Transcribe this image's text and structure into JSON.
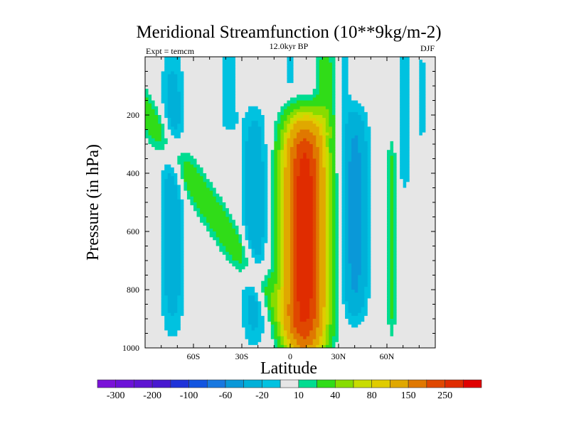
{
  "chart_data": {
    "type": "heatmap",
    "subtype": "filled-contour",
    "title": "Meridional Streamfunction (10**9kg/m-2)",
    "subtitle_left": "Expt = temcm",
    "subtitle_center": "12.0kyr BP",
    "subtitle_right": "DJF",
    "xlabel": "Latitude",
    "ylabel": "Pressure (in hPa)",
    "xlim": [
      -90,
      90
    ],
    "ylim": [
      0,
      1000
    ],
    "y_inverted": true,
    "x_ticks": [
      {
        "value": -60,
        "label": "60S"
      },
      {
        "value": -30,
        "label": "30S"
      },
      {
        "value": 0,
        "label": "0"
      },
      {
        "value": 30,
        "label": "30N"
      },
      {
        "value": 60,
        "label": "60N"
      }
    ],
    "y_ticks": [
      {
        "value": 200,
        "label": "200"
      },
      {
        "value": 400,
        "label": "400"
      },
      {
        "value": 600,
        "label": "600"
      },
      {
        "value": 800,
        "label": "800"
      },
      {
        "value": 1000,
        "label": "1000"
      }
    ],
    "levels": [
      -300,
      -250,
      -200,
      -150,
      -100,
      -80,
      -60,
      -40,
      -20,
      -10,
      10,
      20,
      40,
      60,
      80,
      100,
      150,
      200,
      250,
      300
    ],
    "colors": [
      "#7a12d8",
      "#6c12d8",
      "#5e14d2",
      "#4818d0",
      "#1e32d8",
      "#1254e0",
      "#1878e0",
      "#0a98d8",
      "#00b0d8",
      "#00c2e0",
      "#e6e6e6",
      "#00dc90",
      "#30dc18",
      "#88dc00",
      "#c8dc00",
      "#e0cc00",
      "#e0a800",
      "#e07800",
      "#e04800",
      "#e02c00",
      "#e00000"
    ],
    "colorbar_labels": [
      {
        "level_index": 1,
        "label": "-300"
      },
      {
        "level_index": 3,
        "label": "-200"
      },
      {
        "level_index": 5,
        "label": "-100"
      },
      {
        "level_index": 7,
        "label": "-60"
      },
      {
        "level_index": 9,
        "label": "-20"
      },
      {
        "level_index": 11,
        "label": "10"
      },
      {
        "level_index": 13,
        "label": "40"
      },
      {
        "level_index": 15,
        "label": "80"
      },
      {
        "level_index": 17,
        "label": "150"
      },
      {
        "level_index": 19,
        "label": "250"
      }
    ],
    "features": [
      {
        "name": "SH high-latitude negative cell",
        "lat": -73,
        "lat_width": 7,
        "p_center": 470,
        "p_half": 480,
        "amplitude": -32
      },
      {
        "name": "SH mid-latitude positive cell",
        "lat": -52,
        "lat_width": 10,
        "p_center": 500,
        "p_half": 480,
        "amplitude": 34,
        "tilt": 0.012
      },
      {
        "name": "SH subtropical negative cell",
        "lat": -22,
        "lat_width": 8,
        "p_center": 580,
        "p_half": 400,
        "amplitude": -34
      },
      {
        "name": "SH upper negative branch",
        "lat": -38,
        "lat_width": 6,
        "p_center": 120,
        "p_half": 150,
        "amplitude": -16
      },
      {
        "name": "Tropical Hadley cell",
        "lat": 9,
        "lat_width": 12,
        "p_center": 620,
        "p_half": 400,
        "amplitude": 285
      },
      {
        "name": "Tropical upper positive branch",
        "lat": 22,
        "lat_width": 6,
        "p_center": 120,
        "p_half": 160,
        "amplitude": 28
      },
      {
        "name": "Equatorial upper negative patch",
        "lat": 0,
        "lat_width": 2.5,
        "p_center": 40,
        "p_half": 70,
        "amplitude": -14
      },
      {
        "name": "NH subtropical negative cell",
        "lat": 40,
        "lat_width": 8,
        "p_center": 540,
        "p_half": 360,
        "amplitude": -48
      },
      {
        "name": "NH upper negative branch",
        "lat": 33,
        "lat_width": 4,
        "p_center": 80,
        "p_half": 120,
        "amplitude": -14
      },
      {
        "name": "NH high-latitude positive cell",
        "lat": 63,
        "lat_width": 2.8,
        "p_center": 620,
        "p_half": 330,
        "amplitude": 30
      },
      {
        "name": "NH polar upper negative cell",
        "lat": 71,
        "lat_width": 4,
        "p_center": 200,
        "p_half": 270,
        "amplitude": -18
      },
      {
        "name": "NH polar narrow negative cell",
        "lat": 82,
        "lat_width": 1.6,
        "p_center": 140,
        "p_half": 190,
        "amplitude": -16
      }
    ]
  }
}
